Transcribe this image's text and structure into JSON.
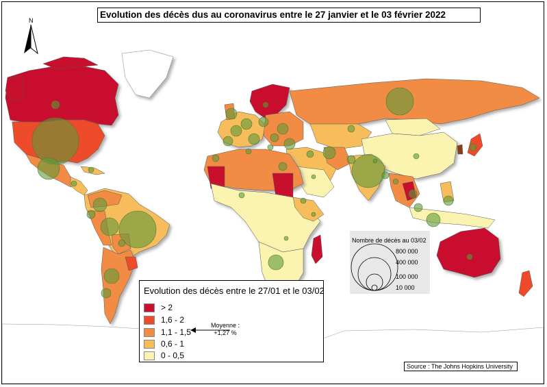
{
  "title": "Evolution des décès dus au coronavirus entre le 27 janvier et le 03 février 2022",
  "north_arrow": {
    "letter": "N",
    "icon": "north-arrow-icon"
  },
  "legend": {
    "title": "Evolution des décès entre le 27/01 et le 03/02",
    "classes": [
      {
        "label": "> 2",
        "color": "#c8102e"
      },
      {
        "label": "1,6 - 2",
        "color": "#ee4b2b"
      },
      {
        "label": "1,1 - 1,5",
        "color": "#f28c45"
      },
      {
        "label": "0,6 - 1",
        "color": "#f7bd5b"
      },
      {
        "label": "0 - 0,5",
        "color": "#fbf4b0"
      }
    ],
    "average_note_line1": "Moyenne :",
    "average_note_line2": "+1,27 %"
  },
  "bubble_legend": {
    "title": "Nombre de décès au 03/02",
    "values": [
      "800 000",
      "400 000",
      "100 000",
      "10 000"
    ],
    "bubble_color": "#6a9a3a"
  },
  "source": "Source : The Johns Hopkins University",
  "colors": {
    "ocean": "#ffffff",
    "border": "#555555"
  }
}
